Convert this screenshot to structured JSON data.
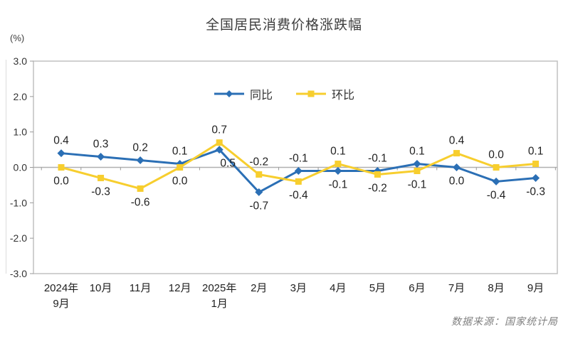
{
  "chart_data": {
    "type": "line",
    "title": "全国居民消费价格涨跌幅",
    "ylabel": "(%)",
    "xlabel": "",
    "ylim": [
      -3.0,
      3.0
    ],
    "yticks": [
      "3.0",
      "2.0",
      "1.0",
      "0.0",
      "-1.0",
      "-2.0",
      "-3.0"
    ],
    "grid": "zero-line-only",
    "legend_position": "top-center",
    "categories": [
      [
        "2024年",
        "9月"
      ],
      [
        "10月"
      ],
      [
        "11月"
      ],
      [
        "12月"
      ],
      [
        "2025年",
        "1月"
      ],
      [
        "2月"
      ],
      [
        "3月"
      ],
      [
        "4月"
      ],
      [
        "5月"
      ],
      [
        "6月"
      ],
      [
        "7月"
      ],
      [
        "8月"
      ],
      [
        "9月"
      ]
    ],
    "series": [
      {
        "name": "同比",
        "color": "#2B6FB5",
        "marker": "diamond",
        "values": [
          0.4,
          0.3,
          0.2,
          0.1,
          0.5,
          -0.7,
          -0.1,
          -0.1,
          -0.1,
          0.1,
          0.0,
          -0.4,
          -0.3
        ]
      },
      {
        "name": "环比",
        "color": "#F7CE2E",
        "marker": "square",
        "values": [
          0.0,
          -0.3,
          -0.6,
          0.0,
          0.7,
          -0.2,
          -0.4,
          0.1,
          -0.2,
          -0.1,
          0.4,
          0.0,
          0.1
        ]
      }
    ],
    "label_offsets": [
      {
        "series": 0,
        "index": 4,
        "dx": 12,
        "dy": 0
      }
    ]
  },
  "footer": {
    "source": "数据来源：国家统计局"
  },
  "colors": {
    "plot_border": "#c0c0c0",
    "zero_line": "#b0b0b0",
    "tick": "#999999",
    "data_label": "#1f1f1f",
    "axis_label": "#333333",
    "title": "#3d3d3d",
    "footer": "#808080"
  }
}
